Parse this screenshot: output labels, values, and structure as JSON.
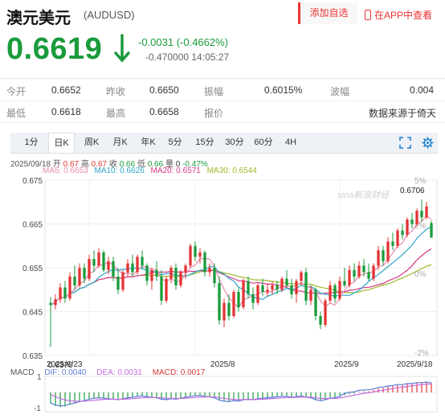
{
  "header": {
    "title": "澳元美元",
    "code": "(AUDUSD)",
    "add_watch": "添加自选",
    "app_link": "在APP中查看"
  },
  "quote": {
    "price": "0.6619",
    "change": "-0.0031 (-0.4662%)",
    "change2": "-0.470000 14:05:27"
  },
  "stats": {
    "row1": [
      {
        "label": "今开",
        "value": "0.6652"
      },
      {
        "label": "昨收",
        "value": "0.6650"
      },
      {
        "label": "振幅",
        "value": "0.6015%"
      },
      {
        "label": "波幅",
        "value": "0.004"
      }
    ],
    "row2": [
      {
        "label": "最低",
        "value": "0.6618"
      },
      {
        "label": "最高",
        "value": "0.6658"
      },
      {
        "label": "报价",
        "value": "数据来源于倚天"
      }
    ]
  },
  "tabs": [
    "1分",
    "日K",
    "周K",
    "月K",
    "年K",
    "5分",
    "15分",
    "30分",
    "60分",
    "4H"
  ],
  "active_tab": "日K",
  "chart_info": {
    "line1": "2025/09/18 开 0.67 高 0.67 收 0.66 低 0.66 量 0 -0.47%",
    "date": "2025/09/18",
    "open_label": "开",
    "open": "0.67",
    "high_label": "高",
    "high": "0.67",
    "close_label": "收",
    "close": "0.66",
    "low_label": "低",
    "low": "0.66",
    "vol_label": "量",
    "vol": "0",
    "pct": "-0.47%",
    "ma5": "MA5: 0.6653",
    "ma10": "MA10: 0.6626",
    "ma20": "MA20: 0.6571",
    "ma30": "MA30: 0.6544",
    "macd_label": "MACD",
    "dif": "DIF: 0.0040",
    "dea": "DEA: 0.0031",
    "macd": "MACD: 0.0017"
  },
  "colors": {
    "up": "#e33333",
    "down": "#1a9b3c",
    "ma5": "#e58cb0",
    "ma10": "#2aa8c9",
    "ma20": "#d8378a",
    "ma30": "#9fb829",
    "dif": "#5a7bd8",
    "dea": "#c36be0",
    "macd": "#d83a3a"
  },
  "chart_data": {
    "type": "candlestick",
    "y_ticks": [
      "0.675",
      "0.665",
      "0.655",
      "0.645",
      "0.635"
    ],
    "y_ticks_right": [
      "5%",
      "2%",
      "0%",
      "-2%"
    ],
    "x_ticks": [
      "2025/6/23",
      "2025/8",
      "2025/9",
      "2025/9/18"
    ],
    "ylim": [
      0.635,
      0.675
    ],
    "max_label": "0.6706",
    "min_label": "0.6370",
    "watermark": "sina新浪财经",
    "candles": [
      [
        0.647,
        0.6483,
        0.637,
        0.6465
      ],
      [
        0.6465,
        0.649,
        0.6455,
        0.6478
      ],
      [
        0.6478,
        0.6515,
        0.647,
        0.6505
      ],
      [
        0.6505,
        0.652,
        0.647,
        0.648
      ],
      [
        0.648,
        0.654,
        0.6475,
        0.653
      ],
      [
        0.653,
        0.6555,
        0.65,
        0.651
      ],
      [
        0.651,
        0.656,
        0.6505,
        0.655
      ],
      [
        0.655,
        0.656,
        0.6515,
        0.6525
      ],
      [
        0.6525,
        0.658,
        0.652,
        0.657
      ],
      [
        0.657,
        0.659,
        0.654,
        0.6555
      ],
      [
        0.6555,
        0.6595,
        0.655,
        0.6585
      ],
      [
        0.6585,
        0.659,
        0.654,
        0.6545
      ],
      [
        0.6545,
        0.6575,
        0.6535,
        0.6565
      ],
      [
        0.6565,
        0.6575,
        0.652,
        0.653
      ],
      [
        0.653,
        0.655,
        0.649,
        0.65
      ],
      [
        0.65,
        0.6545,
        0.6495,
        0.654
      ],
      [
        0.654,
        0.657,
        0.653,
        0.656
      ],
      [
        0.656,
        0.658,
        0.653,
        0.654
      ],
      [
        0.654,
        0.658,
        0.6535,
        0.6575
      ],
      [
        0.6575,
        0.659,
        0.6545,
        0.6555
      ],
      [
        0.6555,
        0.656,
        0.651,
        0.652
      ],
      [
        0.652,
        0.655,
        0.65,
        0.6545
      ],
      [
        0.6545,
        0.6565,
        0.652,
        0.653
      ],
      [
        0.653,
        0.6545,
        0.6465,
        0.6475
      ],
      [
        0.6475,
        0.653,
        0.647,
        0.6525
      ],
      [
        0.6525,
        0.6555,
        0.6515,
        0.655
      ],
      [
        0.655,
        0.656,
        0.65,
        0.651
      ],
      [
        0.651,
        0.6545,
        0.6505,
        0.654
      ],
      [
        0.654,
        0.656,
        0.6525,
        0.6555
      ],
      [
        0.6555,
        0.6605,
        0.655,
        0.66
      ],
      [
        0.66,
        0.661,
        0.6565,
        0.6575
      ],
      [
        0.6575,
        0.6595,
        0.656,
        0.6585
      ],
      [
        0.6585,
        0.659,
        0.653,
        0.654
      ],
      [
        0.654,
        0.656,
        0.653,
        0.655
      ],
      [
        0.655,
        0.656,
        0.6505,
        0.6515
      ],
      [
        0.6515,
        0.653,
        0.642,
        0.643
      ],
      [
        0.643,
        0.648,
        0.6415,
        0.647
      ],
      [
        0.647,
        0.649,
        0.643,
        0.644
      ],
      [
        0.644,
        0.65,
        0.6435,
        0.6495
      ],
      [
        0.6495,
        0.6505,
        0.645,
        0.646
      ],
      [
        0.646,
        0.6525,
        0.6455,
        0.652
      ],
      [
        0.652,
        0.653,
        0.648,
        0.649
      ],
      [
        0.649,
        0.6505,
        0.6455,
        0.647
      ],
      [
        0.647,
        0.6515,
        0.6465,
        0.651
      ],
      [
        0.651,
        0.6525,
        0.6485,
        0.6495
      ],
      [
        0.6495,
        0.6515,
        0.6485,
        0.65
      ],
      [
        0.65,
        0.652,
        0.649,
        0.651
      ],
      [
        0.651,
        0.652,
        0.649,
        0.65
      ],
      [
        0.65,
        0.653,
        0.6495,
        0.6525
      ],
      [
        0.6525,
        0.6545,
        0.6505,
        0.651
      ],
      [
        0.651,
        0.6525,
        0.648,
        0.649
      ],
      [
        0.649,
        0.6525,
        0.647,
        0.652
      ],
      [
        0.652,
        0.6545,
        0.651,
        0.654
      ],
      [
        0.654,
        0.655,
        0.6465,
        0.6475
      ],
      [
        0.6475,
        0.651,
        0.6465,
        0.65
      ],
      [
        0.65,
        0.6505,
        0.643,
        0.644
      ],
      [
        0.644,
        0.645,
        0.641,
        0.642
      ],
      [
        0.642,
        0.648,
        0.6415,
        0.6475
      ],
      [
        0.6475,
        0.652,
        0.647,
        0.651
      ],
      [
        0.651,
        0.6515,
        0.647,
        0.648
      ],
      [
        0.648,
        0.653,
        0.6475,
        0.652
      ],
      [
        0.652,
        0.655,
        0.6505,
        0.651
      ],
      [
        0.651,
        0.6555,
        0.6505,
        0.6545
      ],
      [
        0.6545,
        0.656,
        0.652,
        0.653
      ],
      [
        0.653,
        0.6565,
        0.6525,
        0.6555
      ],
      [
        0.6555,
        0.657,
        0.653,
        0.654
      ],
      [
        0.654,
        0.656,
        0.652,
        0.6525
      ],
      [
        0.6525,
        0.656,
        0.652,
        0.6555
      ],
      [
        0.6555,
        0.66,
        0.6545,
        0.659
      ],
      [
        0.659,
        0.66,
        0.6555,
        0.6565
      ],
      [
        0.6565,
        0.662,
        0.656,
        0.661
      ],
      [
        0.661,
        0.663,
        0.659,
        0.66
      ],
      [
        0.66,
        0.664,
        0.6595,
        0.6635
      ],
      [
        0.6635,
        0.665,
        0.6615,
        0.6625
      ],
      [
        0.6625,
        0.6665,
        0.662,
        0.666
      ],
      [
        0.666,
        0.6675,
        0.664,
        0.665
      ],
      [
        0.665,
        0.6685,
        0.6645,
        0.668
      ],
      [
        0.668,
        0.6706,
        0.6655,
        0.6665
      ],
      [
        0.6665,
        0.67,
        0.666,
        0.669
      ],
      [
        0.6652,
        0.6658,
        0.6618,
        0.6619
      ]
    ],
    "macd_hist": [
      -0.002,
      -0.0024,
      -0.0026,
      -0.0025,
      -0.0022,
      -0.002,
      -0.0017,
      -0.0015,
      -0.0012,
      -0.001,
      -0.0009,
      -0.001,
      -0.0011,
      -0.0012,
      -0.0013,
      -0.0011,
      -0.0009,
      -0.0008,
      -0.0006,
      -0.0005,
      -0.0007,
      -0.0008,
      -0.0009,
      -0.0012,
      -0.0013,
      -0.0011,
      -0.0012,
      -0.001,
      -0.0008,
      -0.0006,
      -0.0005,
      -0.0004,
      -0.0006,
      -0.0007,
      -0.0009,
      -0.0014,
      -0.0016,
      -0.0017,
      -0.0015,
      -0.0016,
      -0.0013,
      -0.0012,
      -0.0013,
      -0.0011,
      -0.001,
      -0.0009,
      -0.0008,
      -0.0007,
      -0.0006,
      -0.0006,
      -0.0008,
      -0.0007,
      -0.0005,
      -0.0008,
      -0.0009,
      -0.0013,
      -0.0015,
      -0.0013,
      -0.001,
      -0.0009,
      -0.0006,
      -0.0005,
      -0.0003,
      -0.0002,
      0.0001,
      0.0002,
      0.0002,
      0.0004,
      0.0007,
      0.0008,
      0.001,
      0.0011,
      0.0013,
      0.0013,
      0.0015,
      0.0015,
      0.0017,
      0.0017,
      0.0018,
      0.0017
    ]
  }
}
